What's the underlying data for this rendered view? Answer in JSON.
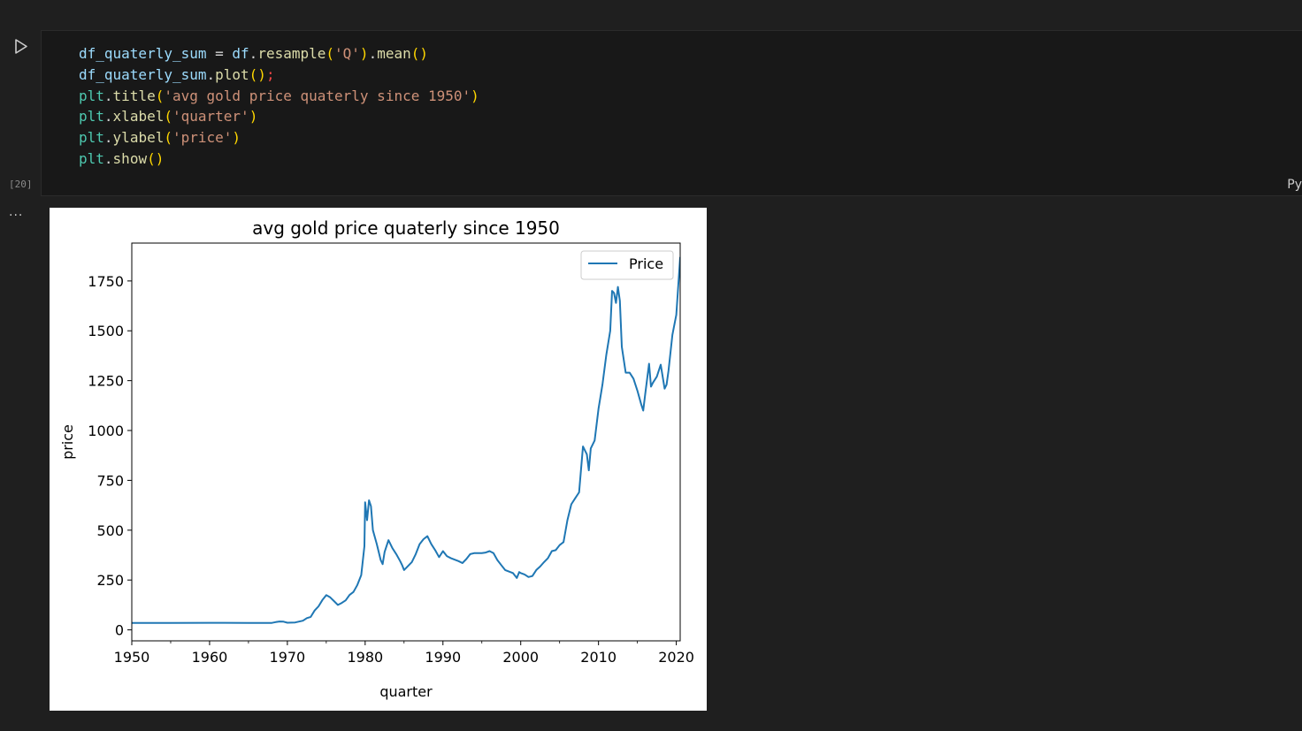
{
  "cell": {
    "execution_count": "[20]",
    "language": "Py",
    "output_menu": "...",
    "code": [
      [
        [
          "df_quaterly_sum",
          "var"
        ],
        [
          " = ",
          "op"
        ],
        [
          "df",
          "var"
        ],
        [
          ".",
          "op"
        ],
        [
          "resample",
          "fn"
        ],
        [
          "(",
          "br"
        ],
        [
          "'Q'",
          "str"
        ],
        [
          ")",
          "br"
        ],
        [
          ".",
          "op"
        ],
        [
          "mean",
          "fn"
        ],
        [
          "()",
          "br"
        ]
      ],
      [
        [
          "df_quaterly_sum",
          "var"
        ],
        [
          ".",
          "op"
        ],
        [
          "plot",
          "fn"
        ],
        [
          "()",
          "br"
        ],
        [
          ";",
          "semi"
        ]
      ],
      [
        [
          "plt",
          "mod"
        ],
        [
          ".",
          "op"
        ],
        [
          "title",
          "fn"
        ],
        [
          "(",
          "br"
        ],
        [
          "'avg gold price quaterly since 1950'",
          "str"
        ],
        [
          ")",
          "br"
        ]
      ],
      [
        [
          "plt",
          "mod"
        ],
        [
          ".",
          "op"
        ],
        [
          "xlabel",
          "fn"
        ],
        [
          "(",
          "br"
        ],
        [
          "'quarter'",
          "str"
        ],
        [
          ")",
          "br"
        ]
      ],
      [
        [
          "plt",
          "mod"
        ],
        [
          ".",
          "op"
        ],
        [
          "ylabel",
          "fn"
        ],
        [
          "(",
          "br"
        ],
        [
          "'price'",
          "str"
        ],
        [
          ")",
          "br"
        ]
      ],
      [
        [
          "plt",
          "mod"
        ],
        [
          ".",
          "op"
        ],
        [
          "show",
          "fn"
        ],
        [
          "()",
          "br"
        ]
      ]
    ]
  },
  "chart_data": {
    "type": "line",
    "title": "avg gold price quaterly since 1950",
    "xlabel": "quarter",
    "ylabel": "price",
    "xlim": [
      1950,
      2020.5
    ],
    "ylim": [
      -55,
      1940
    ],
    "xticks": [
      1950,
      1960,
      1970,
      1980,
      1990,
      2000,
      2010,
      2020
    ],
    "yticks": [
      0,
      250,
      500,
      750,
      1000,
      1250,
      1500,
      1750
    ],
    "legend_position": "top-right",
    "grid": false,
    "series": [
      {
        "name": "Price",
        "color": "#1f77b4",
        "points": [
          [
            1950,
            35
          ],
          [
            1955,
            35
          ],
          [
            1960,
            35.3
          ],
          [
            1965,
            35.1
          ],
          [
            1968,
            35
          ],
          [
            1968.5,
            39
          ],
          [
            1969,
            42
          ],
          [
            1969.5,
            41
          ],
          [
            1970,
            36
          ],
          [
            1971,
            37
          ],
          [
            1972,
            46
          ],
          [
            1972.5,
            59
          ],
          [
            1973,
            65
          ],
          [
            1973.5,
            97
          ],
          [
            1974,
            118
          ],
          [
            1974.5,
            150
          ],
          [
            1975,
            174
          ],
          [
            1975.5,
            163
          ],
          [
            1976,
            144
          ],
          [
            1976.5,
            125
          ],
          [
            1977,
            135
          ],
          [
            1977.5,
            148
          ],
          [
            1978,
            175
          ],
          [
            1978.5,
            190
          ],
          [
            1979,
            225
          ],
          [
            1979.5,
            275
          ],
          [
            1979.9,
            420
          ],
          [
            1980,
            640
          ],
          [
            1980.25,
            550
          ],
          [
            1980.5,
            650
          ],
          [
            1980.75,
            620
          ],
          [
            1981,
            500
          ],
          [
            1981.5,
            430
          ],
          [
            1982,
            350
          ],
          [
            1982.25,
            330
          ],
          [
            1982.5,
            390
          ],
          [
            1983,
            450
          ],
          [
            1983.5,
            410
          ],
          [
            1984,
            380
          ],
          [
            1984.5,
            345
          ],
          [
            1984.75,
            325
          ],
          [
            1985,
            300
          ],
          [
            1985.5,
            320
          ],
          [
            1986,
            340
          ],
          [
            1986.5,
            380
          ],
          [
            1987,
            430
          ],
          [
            1987.5,
            455
          ],
          [
            1988,
            470
          ],
          [
            1988.5,
            430
          ],
          [
            1989,
            400
          ],
          [
            1989.5,
            365
          ],
          [
            1990,
            395
          ],
          [
            1990.5,
            370
          ],
          [
            1991,
            360
          ],
          [
            1992,
            345
          ],
          [
            1992.5,
            335
          ],
          [
            1993,
            355
          ],
          [
            1993.5,
            380
          ],
          [
            1994,
            385
          ],
          [
            1995,
            385
          ],
          [
            1995.5,
            388
          ],
          [
            1996,
            395
          ],
          [
            1996.5,
            385
          ],
          [
            1997,
            350
          ],
          [
            1997.5,
            325
          ],
          [
            1998,
            300
          ],
          [
            1999,
            285
          ],
          [
            1999.5,
            260
          ],
          [
            1999.8,
            290
          ],
          [
            2000,
            285
          ],
          [
            2000.5,
            278
          ],
          [
            2001,
            265
          ],
          [
            2001.5,
            270
          ],
          [
            2002,
            300
          ],
          [
            2002.5,
            318
          ],
          [
            2003,
            340
          ],
          [
            2003.5,
            360
          ],
          [
            2004,
            395
          ],
          [
            2004.5,
            400
          ],
          [
            2005,
            425
          ],
          [
            2005.5,
            440
          ],
          [
            2006,
            550
          ],
          [
            2006.5,
            630
          ],
          [
            2007,
            660
          ],
          [
            2007.5,
            690
          ],
          [
            2008,
            920
          ],
          [
            2008.5,
            880
          ],
          [
            2008.75,
            800
          ],
          [
            2009,
            910
          ],
          [
            2009.5,
            950
          ],
          [
            2010,
            1110
          ],
          [
            2010.5,
            1230
          ],
          [
            2011,
            1380
          ],
          [
            2011.5,
            1500
          ],
          [
            2011.75,
            1700
          ],
          [
            2012,
            1690
          ],
          [
            2012.25,
            1640
          ],
          [
            2012.5,
            1720
          ],
          [
            2012.75,
            1650
          ],
          [
            2013,
            1420
          ],
          [
            2013.5,
            1290
          ],
          [
            2014,
            1290
          ],
          [
            2014.5,
            1260
          ],
          [
            2015,
            1200
          ],
          [
            2015.5,
            1130
          ],
          [
            2015.75,
            1100
          ],
          [
            2016,
            1180
          ],
          [
            2016.5,
            1335
          ],
          [
            2016.75,
            1220
          ],
          [
            2017,
            1240
          ],
          [
            2017.5,
            1270
          ],
          [
            2018,
            1330
          ],
          [
            2018.5,
            1210
          ],
          [
            2018.75,
            1230
          ],
          [
            2019,
            1300
          ],
          [
            2019.5,
            1480
          ],
          [
            2020,
            1580
          ],
          [
            2020.5,
            1870
          ]
        ]
      }
    ]
  }
}
